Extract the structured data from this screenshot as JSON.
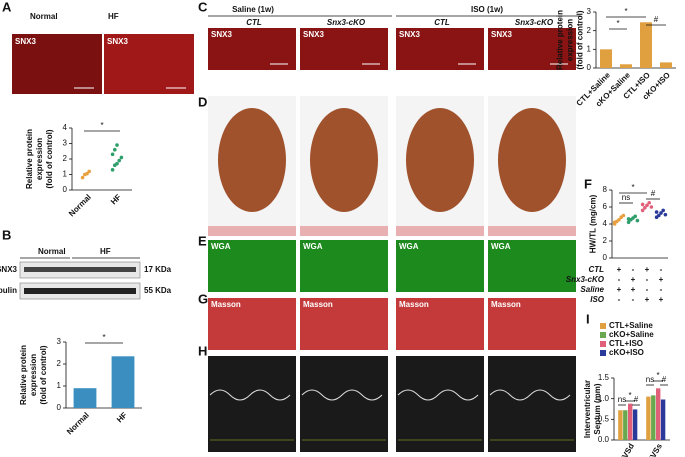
{
  "panel_labels": [
    "A",
    "B",
    "C",
    "D",
    "E",
    "F",
    "G",
    "H",
    "I"
  ],
  "panel_a": {
    "image_labels": [
      "Normal",
      "HF"
    ],
    "stain": "SNX3"
  },
  "panel_b": {
    "columns": [
      "Normal",
      "HF"
    ],
    "rows": [
      {
        "protein": "SNX3",
        "size": "17 KDa"
      },
      {
        "protein": "α-tubulin",
        "size": "55 KDa"
      }
    ]
  },
  "panel_c": {
    "groups": [
      "Saline (1w)",
      "ISO (1w)"
    ],
    "columns": [
      "CTL",
      "Snx3-cKO",
      "CTL",
      "Snx3-cKO"
    ],
    "stain": "SNX3"
  },
  "panel_e": {
    "stain": "WGA"
  },
  "panel_g": {
    "stain": "Masson"
  },
  "panel_f_table": {
    "rows": [
      {
        "label": "CTL",
        "marks": [
          "+",
          "-",
          "+",
          "-"
        ]
      },
      {
        "label": "Snx3-cKO",
        "marks": [
          "-",
          "+",
          "-",
          "+"
        ]
      },
      {
        "label": "Saline",
        "marks": [
          "+",
          "+",
          "-",
          "-"
        ]
      },
      {
        "label": "ISO",
        "marks": [
          "-",
          "-",
          "+",
          "+"
        ]
      }
    ]
  },
  "chart_data": [
    {
      "type": "dot",
      "ylabel": [
        "Relative protein",
        "expression",
        "(fold of control)"
      ],
      "categories": [
        "Normal",
        "HF"
      ],
      "colors": [
        "#e8a040",
        "#2e9e6a"
      ],
      "points": [
        [
          0.8,
          1.0,
          1.05,
          1.2
        ],
        [
          1.3,
          1.6,
          1.7,
          1.9,
          2.1,
          2.3,
          2.6,
          2.9
        ]
      ],
      "ylim": [
        0,
        4
      ],
      "yticks": [
        0,
        1,
        2,
        3,
        4
      ],
      "annotations": [
        "*"
      ]
    },
    {
      "type": "bar",
      "ylabel": [
        "Relative protein",
        "expression",
        "(fold of control)"
      ],
      "categories": [
        "Normal",
        "HF"
      ],
      "values": [
        0.9,
        2.35
      ],
      "color": "#3a8fc0",
      "ylim": [
        0,
        3
      ],
      "yticks": [
        0,
        1,
        2,
        3
      ],
      "annotations": [
        "*"
      ]
    },
    {
      "type": "bar",
      "ylabel": [
        "Relative protein",
        "expression",
        "(fold of control)"
      ],
      "categories": [
        "CTL+Saline",
        "cKO+Saline",
        "CTL+ISO",
        "cKO+ISO"
      ],
      "values": [
        1.0,
        0.2,
        2.45,
        0.3
      ],
      "color": "#e0a040",
      "ylim": [
        0,
        3
      ],
      "yticks": [
        0,
        1,
        2,
        3
      ],
      "annotations": [
        "*",
        "*",
        "#"
      ]
    },
    {
      "type": "dot",
      "ylabel": [
        "HW/TL (mg/cm)"
      ],
      "colors": [
        "#e8a040",
        "#2e9e6a",
        "#e0607a",
        "#2a3a9a"
      ],
      "points": [
        [
          4.0,
          4.3,
          4.5,
          4.8,
          5.0,
          4.2
        ],
        [
          4.2,
          4.5,
          4.7,
          4.9,
          4.4,
          4.6
        ],
        [
          5.6,
          5.9,
          6.2,
          6.5,
          6.0,
          6.3
        ],
        [
          4.8,
          5.0,
          5.3,
          5.6,
          5.1,
          5.4
        ]
      ],
      "ylim": [
        0,
        8
      ],
      "yticks": [
        0,
        2,
        4,
        6,
        8
      ],
      "annotations": [
        "ns",
        "*",
        "#"
      ]
    },
    {
      "type": "groupedbar",
      "ylabel": [
        "Interventricular",
        "Septum (mm)"
      ],
      "categories": [
        "IVSd",
        "IVSs"
      ],
      "series": [
        {
          "name": "CTL+Saline",
          "color": "#e0a040",
          "values": [
            0.72,
            1.05
          ]
        },
        {
          "name": "cKO+Saline",
          "color": "#6aa84f",
          "values": [
            0.72,
            1.08
          ]
        },
        {
          "name": "CTL+ISO",
          "color": "#e0607a",
          "values": [
            0.88,
            1.25
          ]
        },
        {
          "name": "cKO+ISO",
          "color": "#2a3a9a",
          "values": [
            0.74,
            0.98
          ]
        }
      ],
      "ylim": [
        0,
        1.5
      ],
      "yticks": [
        {
          "value": 0,
          "label": "0.0"
        },
        {
          "value": 0.5,
          "label": "0.5"
        },
        {
          "value": 1,
          "label": "1.0"
        },
        {
          "value": 1.5,
          "label": "1.5"
        }
      ],
      "annotations": [
        "ns",
        "*",
        "#",
        "ns",
        "*",
        "#"
      ]
    }
  ]
}
